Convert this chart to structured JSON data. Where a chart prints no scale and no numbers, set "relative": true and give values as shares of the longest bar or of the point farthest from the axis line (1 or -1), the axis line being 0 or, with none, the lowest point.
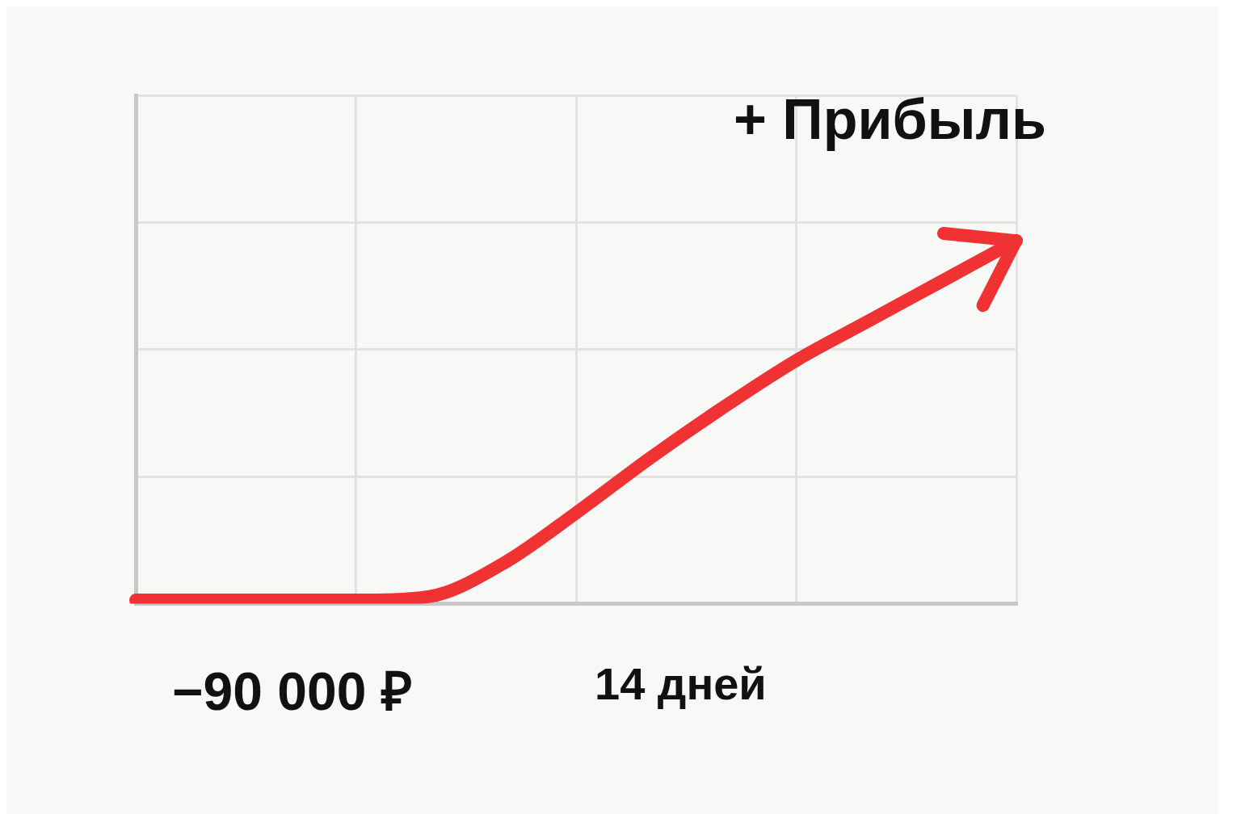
{
  "chart_data": {
    "type": "line",
    "relative": true,
    "categories": [
      null,
      null,
      null,
      null,
      null,
      null,
      null,
      null,
      null,
      null,
      null,
      null,
      null
    ],
    "series": [
      {
        "color": "#f03232",
        "values": [
          0.01,
          0.01,
          0.01,
          0.01,
          0.02,
          0.11,
          0.25,
          0.4,
          0.54,
          0.67,
          0.78,
          0.89,
          1
        ]
      }
    ],
    "annotations": [
      "−90 000 ₽",
      "14 дней",
      "+ Прибыль"
    ],
    "grid": true,
    "legend": false,
    "marker": "none",
    "line_style": "solid"
  }
}
